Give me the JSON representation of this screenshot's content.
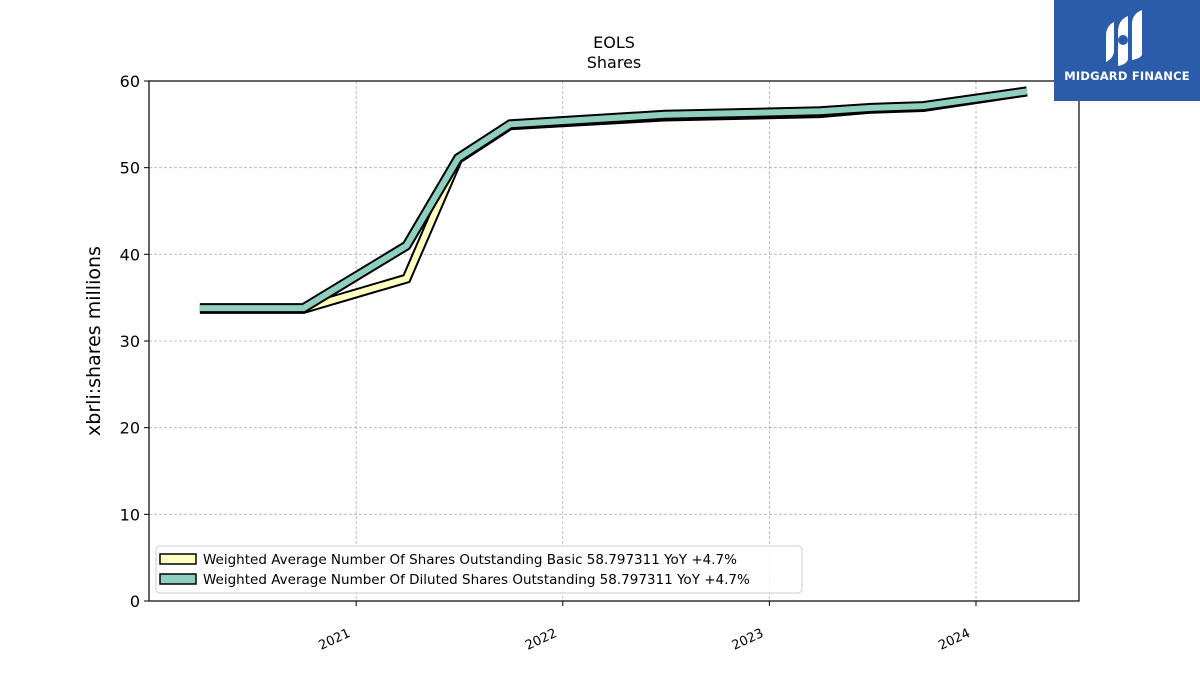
{
  "chart_data": {
    "type": "line",
    "title": "EOLS",
    "subtitle": "Shares",
    "xlabel": "",
    "ylabel": "xbrli:shares millions",
    "xlim": [
      "2020-01-01",
      "2024-07-01"
    ],
    "ylim": [
      0,
      60
    ],
    "yticks": [
      0,
      10,
      20,
      30,
      40,
      50,
      60
    ],
    "xticks": [
      "2021",
      "2022",
      "2023",
      "2024"
    ],
    "grid": true,
    "legend_position": "lower-left",
    "series": [
      {
        "name": "Weighted Average Number Of Shares Outstanding Basic  58.797311 YoY +4.7%",
        "color": "#ffffbf",
        "x": [
          "2020-03-31",
          "2020-09-30",
          "2021-03-31",
          "2021-06-30",
          "2021-09-30",
          "2022-06-30",
          "2023-03-31",
          "2023-06-30",
          "2023-09-30",
          "2024-03-31"
        ],
        "values": [
          33.7,
          33.7,
          37.2,
          51.0,
          54.9,
          55.9,
          56.3,
          56.8,
          57.0,
          58.8
        ]
      },
      {
        "name": "Weighted Average Number Of Diluted Shares Outstanding  58.797311 YoY +4.7%",
        "color": "#8ecfc0",
        "x": [
          "2020-03-31",
          "2020-09-30",
          "2021-03-31",
          "2021-06-30",
          "2021-09-30",
          "2022-06-30",
          "2023-03-31",
          "2023-06-30",
          "2023-09-30",
          "2024-03-31"
        ],
        "values": [
          33.8,
          33.8,
          41.0,
          51.1,
          55.0,
          56.1,
          56.5,
          56.9,
          57.1,
          58.8
        ]
      }
    ]
  },
  "logo": {
    "text": "MIDGARD FINANCE",
    "background": "#2a5caa"
  }
}
